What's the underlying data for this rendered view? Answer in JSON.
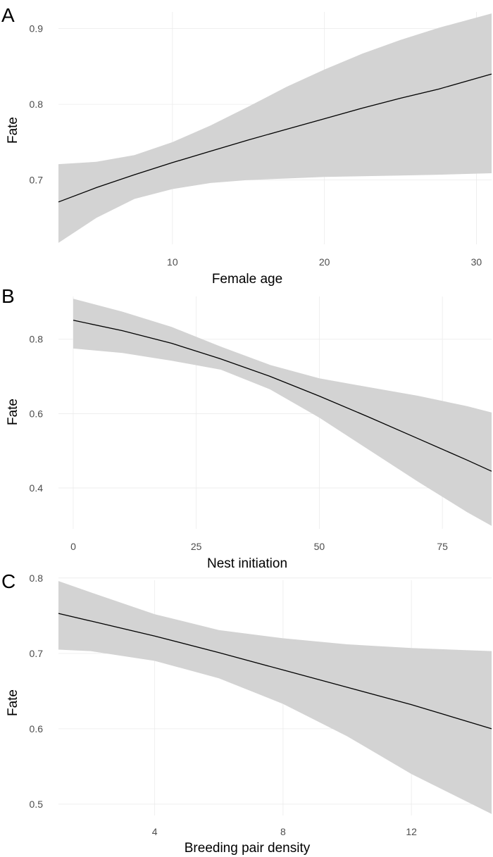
{
  "chart_data": [
    {
      "type": "line",
      "panel_label": "A",
      "xlabel": "Female age",
      "ylabel": "Fate",
      "xlim": [
        2.5,
        31
      ],
      "ylim": [
        0.615,
        0.922
      ],
      "x_ticks": [
        10,
        20,
        30
      ],
      "y_ticks": [
        0.7,
        0.8,
        0.9
      ],
      "x_tick_labels": [
        "10",
        "20",
        "30"
      ],
      "y_tick_labels": [
        "0.7",
        "0.8",
        "0.9"
      ],
      "grid": true,
      "colors": {
        "band": "#d3d3d3",
        "line": "#000000"
      },
      "series": [
        {
          "x": [
            2.5,
            5,
            7.5,
            10,
            12.5,
            15,
            17.5,
            20,
            22.5,
            25,
            27.5,
            31
          ],
          "y": [
            0.671,
            0.69,
            0.707,
            0.723,
            0.738,
            0.753,
            0.767,
            0.781,
            0.795,
            0.808,
            0.82,
            0.84
          ],
          "lower": [
            0.617,
            0.65,
            0.675,
            0.688,
            0.696,
            0.7,
            0.702,
            0.704,
            0.705,
            0.706,
            0.707,
            0.709
          ],
          "upper": [
            0.721,
            0.724,
            0.733,
            0.75,
            0.772,
            0.797,
            0.823,
            0.846,
            0.867,
            0.885,
            0.901,
            0.92
          ]
        }
      ]
    },
    {
      "type": "line",
      "panel_label": "B",
      "xlabel": "Nest initiation",
      "ylabel": "Fate",
      "xlim": [
        -3,
        85
      ],
      "ylim": [
        0.29,
        0.915
      ],
      "x_ticks": [
        0,
        25,
        50,
        75
      ],
      "y_ticks": [
        0.4,
        0.6,
        0.8
      ],
      "x_tick_labels": [
        "0",
        "25",
        "50",
        "75"
      ],
      "y_tick_labels": [
        "0.4",
        "0.6",
        "0.8"
      ],
      "grid": true,
      "colors": {
        "band": "#d3d3d3",
        "line": "#000000"
      },
      "series": [
        {
          "x": [
            0,
            10,
            20,
            30,
            40,
            50,
            60,
            70,
            80,
            85
          ],
          "y": [
            0.851,
            0.823,
            0.789,
            0.747,
            0.7,
            0.647,
            0.591,
            0.533,
            0.475,
            0.445
          ],
          "lower": [
            0.775,
            0.763,
            0.742,
            0.718,
            0.665,
            0.589,
            0.503,
            0.417,
            0.335,
            0.298
          ],
          "upper": [
            0.909,
            0.874,
            0.833,
            0.78,
            0.731,
            0.695,
            0.671,
            0.648,
            0.62,
            0.603
          ]
        }
      ]
    },
    {
      "type": "line",
      "panel_label": "C",
      "xlabel": "Breeding pair density",
      "ylabel": "Fate",
      "xlim": [
        1,
        14.5
      ],
      "ylim": [
        0.485,
        0.797
      ],
      "x_ticks": [
        4,
        8,
        12
      ],
      "y_ticks": [
        0.5,
        0.6,
        0.7,
        0.8
      ],
      "x_tick_labels": [
        "4",
        "8",
        "12"
      ],
      "y_tick_labels": [
        "0.5",
        "0.6",
        "0.7",
        "0.8"
      ],
      "grid": true,
      "colors": {
        "band": "#d3d3d3",
        "line": "#000000"
      },
      "series": [
        {
          "x": [
            1,
            2,
            4,
            6,
            8,
            10,
            12,
            14.5
          ],
          "y": [
            0.753,
            0.743,
            0.723,
            0.701,
            0.678,
            0.655,
            0.632,
            0.6
          ],
          "lower": [
            0.705,
            0.703,
            0.69,
            0.667,
            0.633,
            0.59,
            0.54,
            0.487
          ],
          "upper": [
            0.796,
            0.781,
            0.752,
            0.731,
            0.72,
            0.712,
            0.707,
            0.703
          ]
        }
      ]
    }
  ]
}
